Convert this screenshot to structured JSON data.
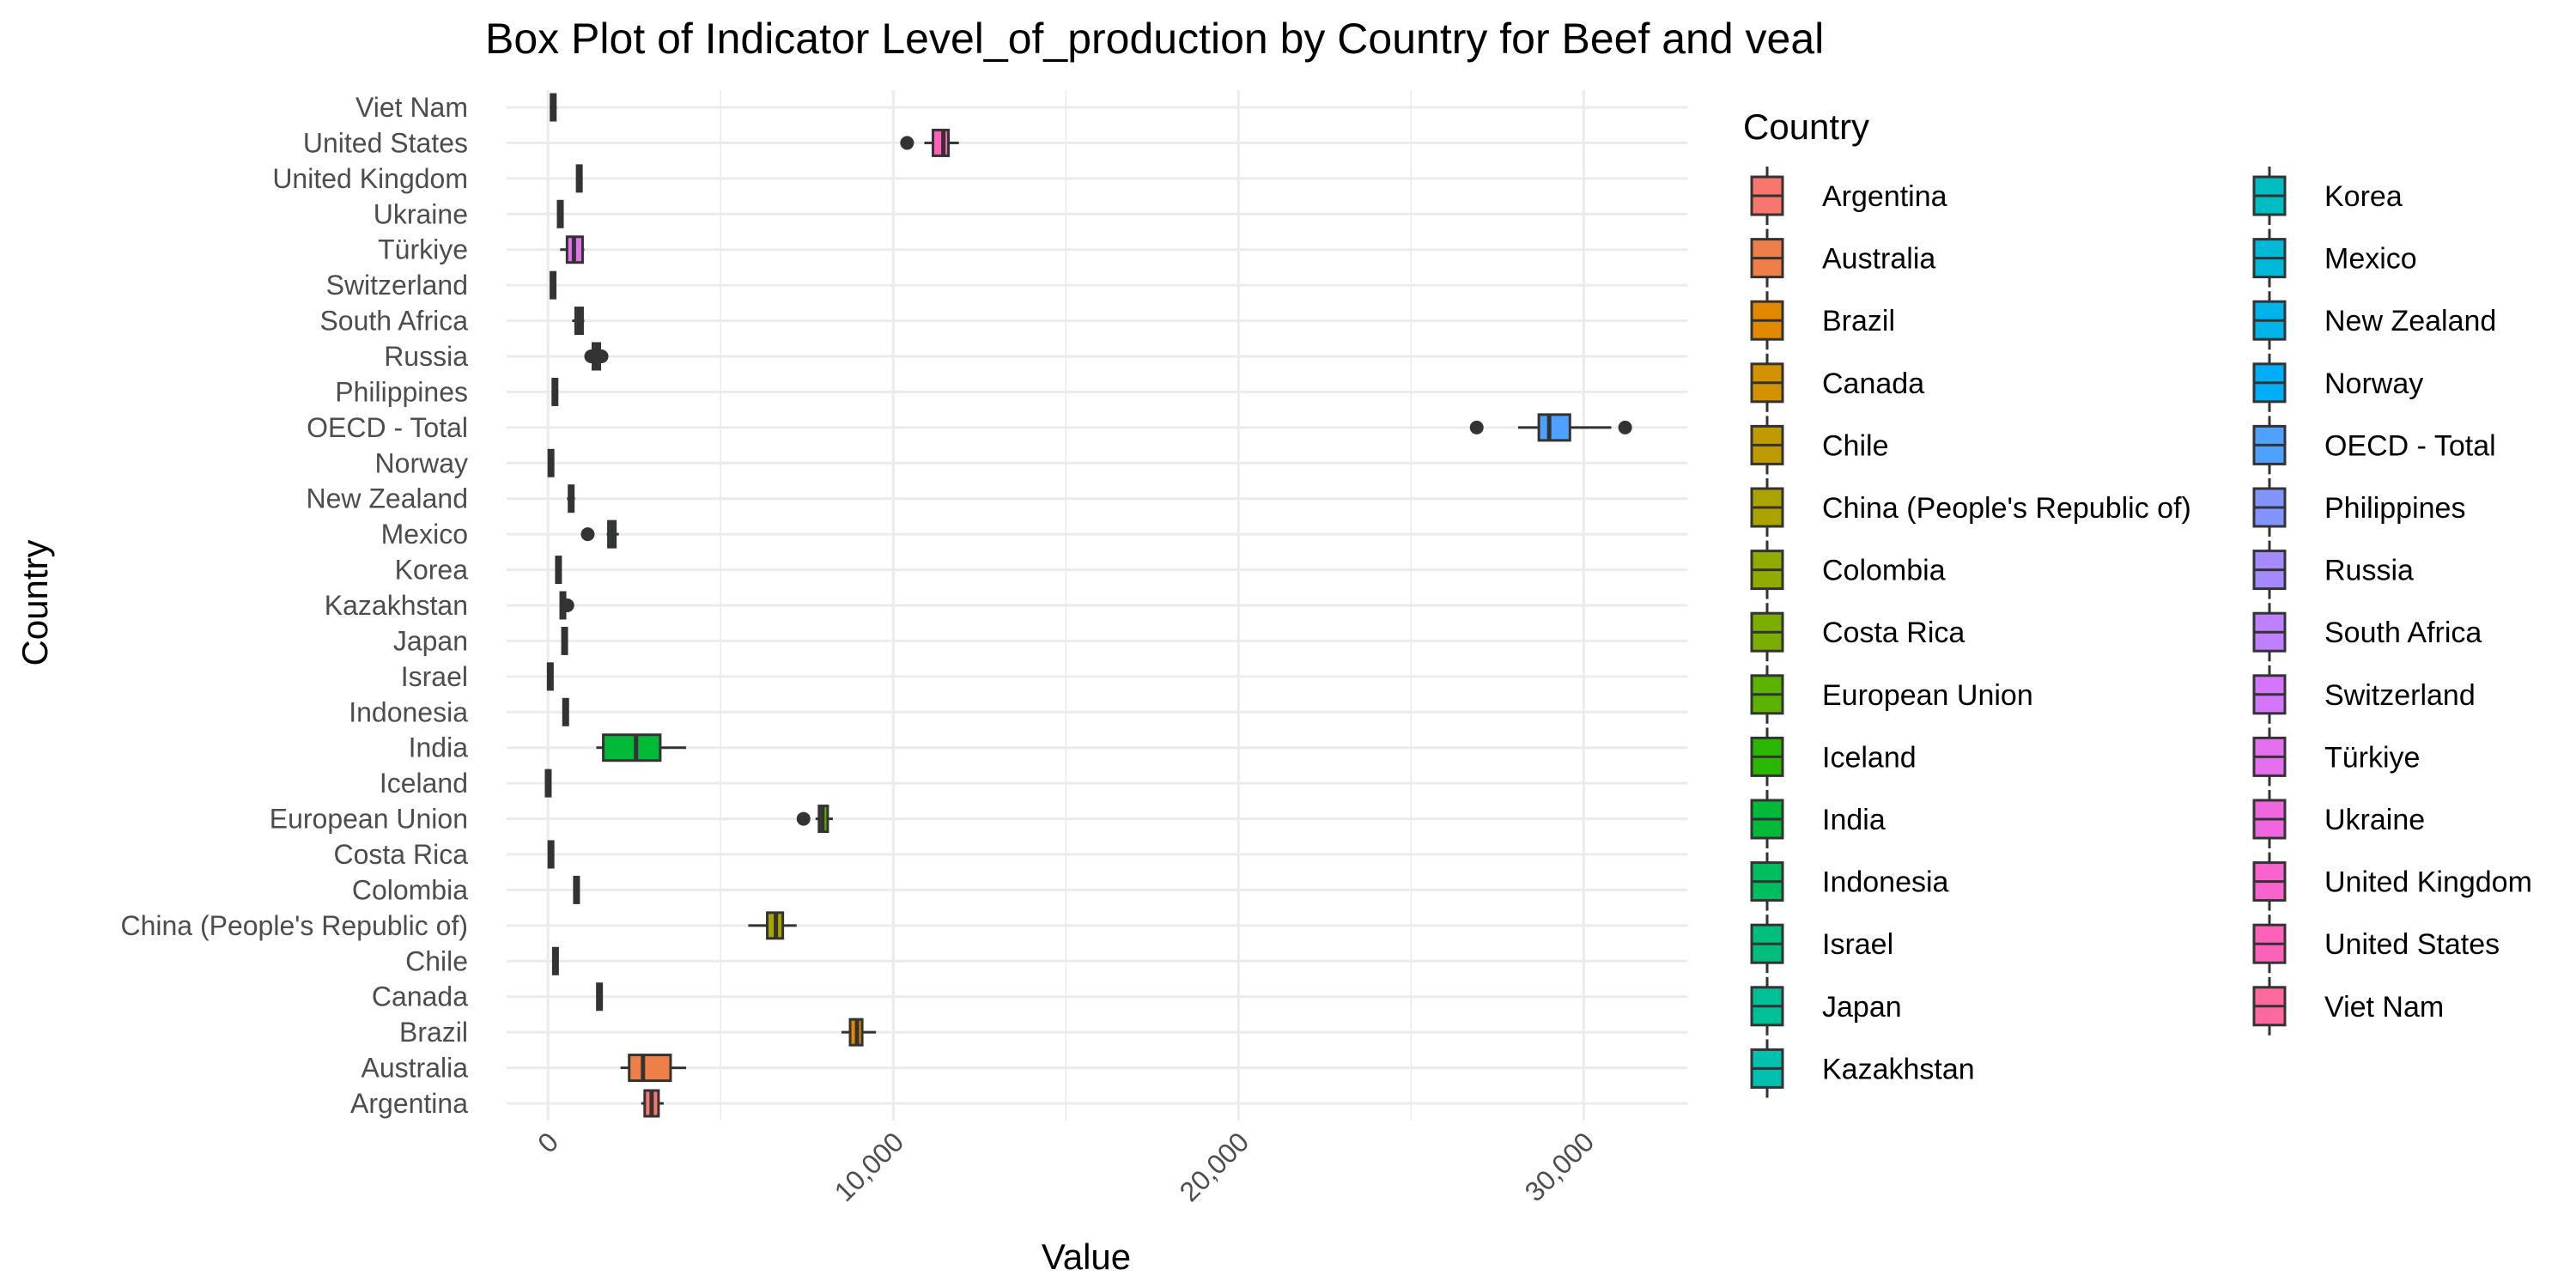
{
  "chart_data": {
    "type": "boxplot",
    "orientation": "horizontal",
    "title": "Box Plot of Indicator Level_of_production by Country for Beef and veal",
    "xlabel": "Value",
    "ylabel": "Country",
    "xlim": [
      -1200,
      33000
    ],
    "x_ticks": [
      0,
      10000,
      20000,
      30000
    ],
    "x_tick_labels": [
      "0",
      "10,000",
      "20,000",
      "30,000"
    ],
    "grid": true,
    "legend": {
      "title": "Country",
      "position": "right",
      "columns": 2
    },
    "series": [
      {
        "name": "Argentina",
        "color": "#F8766D",
        "min": 2700,
        "q1": 2800,
        "median": 3000,
        "q3": 3200,
        "max": 3350,
        "outliers": []
      },
      {
        "name": "Australia",
        "color": "#EF7F49",
        "min": 2100,
        "q1": 2350,
        "median": 2750,
        "q3": 3550,
        "max": 4000,
        "outliers": []
      },
      {
        "name": "Brazil",
        "color": "#E38900",
        "min": 8500,
        "q1": 8750,
        "median": 8950,
        "q3": 9100,
        "max": 9500,
        "outliers": []
      },
      {
        "name": "Canada",
        "color": "#D39200",
        "min": 1400,
        "q1": 1440,
        "median": 1480,
        "q3": 1540,
        "max": 1580,
        "outliers": []
      },
      {
        "name": "Chile",
        "color": "#C09B00",
        "min": 190,
        "q1": 200,
        "median": 215,
        "q3": 230,
        "max": 240,
        "outliers": []
      },
      {
        "name": "China (People's Republic of)",
        "color": "#AAA300",
        "min": 5800,
        "q1": 6350,
        "median": 6600,
        "q3": 6800,
        "max": 7200,
        "outliers": []
      },
      {
        "name": "Colombia",
        "color": "#93AA00",
        "min": 780,
        "q1": 800,
        "median": 820,
        "q3": 850,
        "max": 870,
        "outliers": []
      },
      {
        "name": "Costa Rica",
        "color": "#7CAE00",
        "min": 70,
        "q1": 80,
        "median": 85,
        "q3": 90,
        "max": 100,
        "outliers": []
      },
      {
        "name": "European Union",
        "color": "#5BB300",
        "min": 7750,
        "q1": 7850,
        "median": 7950,
        "q3": 8100,
        "max": 8250,
        "outliers": [
          7400
        ]
      },
      {
        "name": "Iceland",
        "color": "#2BB600",
        "min": 0,
        "q1": 5,
        "median": 5,
        "q3": 6,
        "max": 8,
        "outliers": []
      },
      {
        "name": "India",
        "color": "#00BA38",
        "min": 1400,
        "q1": 1600,
        "median": 2550,
        "q3": 3250,
        "max": 4000,
        "outliers": []
      },
      {
        "name": "Indonesia",
        "color": "#00BD5F",
        "min": 470,
        "q1": 490,
        "median": 510,
        "q3": 530,
        "max": 550,
        "outliers": []
      },
      {
        "name": "Israel",
        "color": "#00BF7D",
        "min": 50,
        "q1": 60,
        "median": 65,
        "q3": 70,
        "max": 80,
        "outliers": []
      },
      {
        "name": "Japan",
        "color": "#00C097",
        "min": 460,
        "q1": 470,
        "median": 480,
        "q3": 490,
        "max": 500,
        "outliers": []
      },
      {
        "name": "Kazakhstan",
        "color": "#00C0AF",
        "min": 350,
        "q1": 380,
        "median": 420,
        "q3": 480,
        "max": 520,
        "outliers": [
          560
        ]
      },
      {
        "name": "Korea",
        "color": "#00BDC4",
        "min": 270,
        "q1": 285,
        "median": 300,
        "q3": 320,
        "max": 330,
        "outliers": []
      },
      {
        "name": "Mexico",
        "color": "#00B9D8",
        "min": 1700,
        "q1": 1750,
        "median": 1850,
        "q3": 1950,
        "max": 2050,
        "outliers": [
          1150
        ]
      },
      {
        "name": "New Zealand",
        "color": "#00B4EA",
        "min": 550,
        "q1": 620,
        "median": 680,
        "q3": 720,
        "max": 780,
        "outliers": []
      },
      {
        "name": "Norway",
        "color": "#00AEF8",
        "min": 70,
        "q1": 80,
        "median": 85,
        "q3": 90,
        "max": 100,
        "outliers": []
      },
      {
        "name": "OECD - Total",
        "color": "#4FA1FF",
        "min": 28100,
        "q1": 28700,
        "median": 29000,
        "q3": 29600,
        "max": 30800,
        "outliers": [
          26900,
          31200
        ]
      },
      {
        "name": "Philippines",
        "color": "#8494FF",
        "min": 180,
        "q1": 190,
        "median": 200,
        "q3": 210,
        "max": 220,
        "outliers": []
      },
      {
        "name": "Russia",
        "color": "#A58AFF",
        "min": 1200,
        "q1": 1300,
        "median": 1400,
        "q3": 1500,
        "max": 1600,
        "outliers": [
          1250,
          1550
        ]
      },
      {
        "name": "South Africa",
        "color": "#BF80FF",
        "min": 700,
        "q1": 800,
        "median": 900,
        "q3": 1000,
        "max": 1050,
        "outliers": []
      },
      {
        "name": "Switzerland",
        "color": "#D575FE",
        "min": 130,
        "q1": 140,
        "median": 145,
        "q3": 150,
        "max": 160,
        "outliers": []
      },
      {
        "name": "Türkiye",
        "color": "#E56FEF",
        "min": 350,
        "q1": 550,
        "median": 750,
        "q3": 1000,
        "max": 1050,
        "outliers": []
      },
      {
        "name": "Ukraine",
        "color": "#F066DF",
        "min": 300,
        "q1": 330,
        "median": 360,
        "q3": 380,
        "max": 400,
        "outliers": []
      },
      {
        "name": "United Kingdom",
        "color": "#F863CD",
        "min": 870,
        "q1": 890,
        "median": 900,
        "q3": 920,
        "max": 940,
        "outliers": []
      },
      {
        "name": "United States",
        "color": "#FD61B8",
        "min": 10900,
        "q1": 11150,
        "median": 11450,
        "q3": 11600,
        "max": 11900,
        "outliers": [
          10400
        ]
      },
      {
        "name": "Viet Nam",
        "color": "#FF689F",
        "min": 50,
        "q1": 100,
        "median": 150,
        "q3": 200,
        "max": 250,
        "outliers": []
      }
    ],
    "legend_order": [
      "Argentina",
      "Australia",
      "Brazil",
      "Canada",
      "Chile",
      "China (People's Republic of)",
      "Colombia",
      "Costa Rica",
      "European Union",
      "Iceland",
      "India",
      "Indonesia",
      "Israel",
      "Japan",
      "Kazakhstan",
      "Korea",
      "Mexico",
      "New Zealand",
      "Norway",
      "OECD - Total",
      "Philippines",
      "Russia",
      "South Africa",
      "Switzerland",
      "Türkiye",
      "Ukraine",
      "United Kingdom",
      "United States",
      "Viet Nam"
    ]
  }
}
